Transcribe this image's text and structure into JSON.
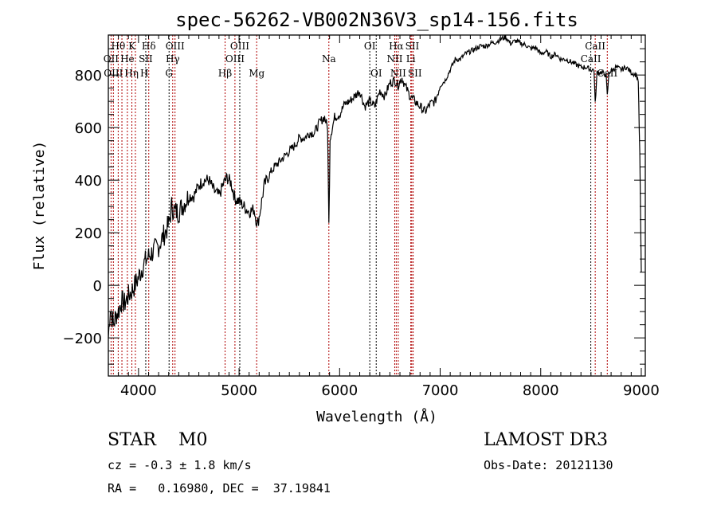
{
  "chart_data": {
    "type": "line",
    "title": "spec-56262-VB002N36V3_sp14-156.fits",
    "xlabel": "Wavelength (Å)",
    "ylabel": "Flux (relative)",
    "xlim": [
      3700,
      9040
    ],
    "ylim": [
      -345,
      952
    ],
    "xticks": [
      4000,
      5000,
      6000,
      7000,
      8000,
      9000
    ],
    "yticks": [
      -200,
      0,
      200,
      400,
      600,
      800
    ],
    "series": [
      {
        "name": "spectrum",
        "x": [
          3700,
          3720,
          3750,
          3780,
          3800,
          3830,
          3860,
          3900,
          3950,
          4000,
          4050,
          4100,
          4150,
          4200,
          4250,
          4300,
          4330,
          4360,
          4400,
          4450,
          4500,
          4550,
          4600,
          4650,
          4700,
          4750,
          4800,
          4850,
          4880,
          4920,
          4960,
          5000,
          5050,
          5100,
          5150,
          5180,
          5200,
          5250,
          5300,
          5350,
          5400,
          5450,
          5500,
          5550,
          5600,
          5650,
          5700,
          5750,
          5800,
          5850,
          5880,
          5893,
          5905,
          5950,
          6000,
          6050,
          6100,
          6150,
          6200,
          6250,
          6300,
          6350,
          6400,
          6450,
          6500,
          6550,
          6580,
          6620,
          6650,
          6700,
          6750,
          6800,
          6850,
          6900,
          6950,
          7000,
          7050,
          7100,
          7150,
          7200,
          7250,
          7300,
          7350,
          7400,
          7450,
          7500,
          7550,
          7600,
          7650,
          7700,
          7750,
          7800,
          7850,
          7900,
          7950,
          8000,
          8050,
          8100,
          8150,
          8200,
          8250,
          8300,
          8350,
          8400,
          8450,
          8500,
          8530,
          8542,
          8560,
          8600,
          8650,
          8662,
          8680,
          8750,
          8800,
          8850,
          8900,
          8950,
          8970,
          8985,
          9000
        ],
        "y": [
          -200,
          -80,
          -150,
          -110,
          -100,
          -60,
          -70,
          -40,
          -10,
          30,
          80,
          110,
          130,
          150,
          190,
          230,
          300,
          280,
          280,
          310,
          340,
          340,
          380,
          400,
          400,
          360,
          340,
          390,
          410,
          390,
          330,
          320,
          300,
          280,
          290,
          230,
          260,
          380,
          420,
          450,
          470,
          490,
          510,
          530,
          560,
          560,
          580,
          580,
          620,
          640,
          600,
          230,
          560,
          640,
          650,
          690,
          700,
          720,
          740,
          680,
          700,
          680,
          740,
          720,
          770,
          780,
          760,
          790,
          760,
          720,
          700,
          680,
          660,
          690,
          700,
          760,
          780,
          820,
          860,
          860,
          880,
          890,
          900,
          910,
          910,
          920,
          925,
          935,
          945,
          920,
          930,
          920,
          915,
          900,
          905,
          880,
          890,
          870,
          880,
          860,
          860,
          850,
          840,
          830,
          830,
          820,
          820,
          690,
          810,
          810,
          800,
          720,
          810,
          830,
          820,
          830,
          810,
          800,
          780,
          500,
          50
        ]
      }
    ],
    "lines": [
      {
        "w": 3727,
        "label": "OII",
        "row": 2,
        "color": "#b00000"
      },
      {
        "w": 3750,
        "label": "OIII",
        "row": 3,
        "color": "#b00000"
      },
      {
        "w": 3798,
        "label": "Hθ",
        "row": 1,
        "color": "#b00000"
      },
      {
        "w": 3835,
        "label": "Hη",
        "row": 3,
        "color": "#b00000"
      },
      {
        "w": 3889,
        "label": "He",
        "row": 2,
        "color": "#b00000"
      },
      {
        "w": 3934,
        "label": "K",
        "row": 1,
        "color": "#b00000"
      },
      {
        "w": 3969,
        "label": "H",
        "row": 3,
        "color": "#b00000"
      },
      {
        "w": 4072,
        "label": "SII",
        "row": 2,
        "color": "#000000"
      },
      {
        "w": 4102,
        "label": "Hδ",
        "row": 1,
        "color": "#b00000"
      },
      {
        "w": 4304,
        "label": "G",
        "row": 3,
        "color": "#000000"
      },
      {
        "w": 4340,
        "label": "Hγ",
        "row": 2,
        "color": "#b00000"
      },
      {
        "w": 4363,
        "label": "OIII",
        "row": 1,
        "color": "#b00000"
      },
      {
        "w": 4861,
        "label": "Hβ",
        "row": 3,
        "color": "#b00000"
      },
      {
        "w": 4959,
        "label": "OIII",
        "row": 2,
        "color": "#b00000"
      },
      {
        "w": 5007,
        "label": "OIII",
        "row": 1,
        "color": "#000000"
      },
      {
        "w": 5175,
        "label": "Mg",
        "row": 3,
        "color": "#b00000"
      },
      {
        "w": 5893,
        "label": "Na",
        "row": 2,
        "color": "#b00000"
      },
      {
        "w": 6300,
        "label": "OI",
        "row": 1,
        "color": "#000000"
      },
      {
        "w": 6364,
        "label": "OI",
        "row": 3,
        "color": "#000000"
      },
      {
        "w": 6548,
        "label": "NII",
        "row": 2,
        "color": "#b00000"
      },
      {
        "w": 6563,
        "label": "Hα",
        "row": 1,
        "color": "#b00000"
      },
      {
        "w": 6583,
        "label": "NII",
        "row": 3,
        "color": "#b00000"
      },
      {
        "w": 6708,
        "label": "Li",
        "row": 2,
        "color": "#b00000"
      },
      {
        "w": 6717,
        "label": "SII",
        "row": 1,
        "color": "#b00000"
      },
      {
        "w": 6731,
        "label": "SII",
        "row": 3,
        "color": "#b00000"
      },
      {
        "w": 8498,
        "label": "CaII",
        "row": 2,
        "color": "#000000"
      },
      {
        "w": 8542,
        "label": "CaII",
        "row": 1,
        "color": "#b00000"
      },
      {
        "w": 8662,
        "label": "CaII",
        "row": 3,
        "color": "#b00000"
      }
    ]
  },
  "info": {
    "class_line": "STAR    M0",
    "cz": "cz = -0.3 ± 1.8 km/s",
    "coords": "RA =   0.16980, DEC =  37.19841",
    "survey": "LAMOST DR3",
    "obs_date": "Obs-Date: 20121130"
  }
}
